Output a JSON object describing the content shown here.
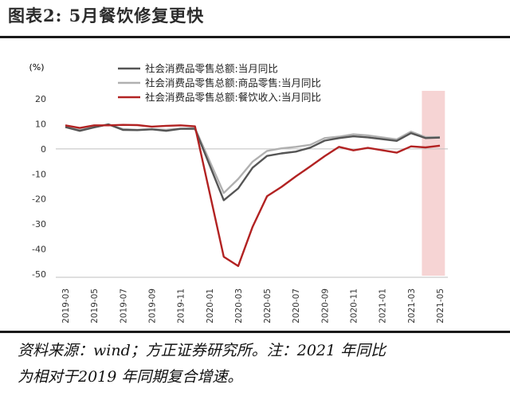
{
  "figure": {
    "title": "图表2:  5月餐饮修复更快",
    "source_line1": "资料来源：wind；方正证券研究所。注：2021 年同比",
    "source_line2": "为相对于2019 年同期复合增速。"
  },
  "colors": {
    "series_total": "#555555",
    "series_goods": "#b0b0b0",
    "series_catering": "#b22222",
    "highlight": "#f6d4d4",
    "axis": "#bfbfbf"
  },
  "chart_data": {
    "type": "line",
    "ylabel": "(%)",
    "ylim": [
      -50,
      20
    ],
    "yticks": [
      20,
      10,
      0,
      -10,
      -20,
      -30,
      -40,
      -50
    ],
    "x": [
      "2019-03",
      "2019-04",
      "2019-05",
      "2019-06",
      "2019-07",
      "2019-08",
      "2019-09",
      "2019-10",
      "2019-11",
      "2019-12",
      "2020-01",
      "2020-02",
      "2020-03",
      "2020-04",
      "2020-05",
      "2020-06",
      "2020-07",
      "2020-08",
      "2020-09",
      "2020-10",
      "2020-11",
      "2020-12",
      "2021-01",
      "2021-02",
      "2021-03",
      "2021-04",
      "2021-05"
    ],
    "xtick_labels": [
      "2019-03",
      "2019-05",
      "2019-07",
      "2019-09",
      "2019-11",
      "2020-01",
      "2020-03",
      "2020-05",
      "2020-07",
      "2020-09",
      "2020-11",
      "2021-01",
      "2021-03",
      "2021-05"
    ],
    "highlight_range": [
      "2021-04",
      "2021-05"
    ],
    "grid": false,
    "legend_position": "top",
    "series": [
      {
        "name": "社会消费品零售总额:当月同比",
        "values": [
          8.7,
          7.2,
          8.6,
          9.8,
          7.6,
          7.5,
          7.8,
          7.2,
          8.0,
          8.0,
          null,
          -20.5,
          -15.8,
          -7.5,
          -2.8,
          -1.8,
          -1.1,
          0.5,
          3.3,
          4.3,
          5.0,
          4.6,
          null,
          3.2,
          6.3,
          4.3,
          4.5
        ]
      },
      {
        "name": "社会消费品零售总额:商品零售:当月同比",
        "values": [
          8.9,
          7.8,
          8.7,
          9.8,
          7.9,
          7.6,
          7.9,
          7.6,
          8.1,
          8.3,
          null,
          -17.6,
          -12.0,
          -5.1,
          -0.8,
          0.2,
          0.8,
          1.6,
          4.3,
          4.9,
          5.8,
          5.4,
          null,
          3.8,
          6.9,
          4.7,
          4.7
        ]
      },
      {
        "name": "社会消费品零售总额:餐饮收入:当月同比",
        "values": [
          9.4,
          8.4,
          9.4,
          9.4,
          9.6,
          9.5,
          8.9,
          9.2,
          9.4,
          9.0,
          null,
          -43.1,
          -46.8,
          -31.1,
          -18.9,
          -15.2,
          -11.0,
          -7.0,
          -2.9,
          0.8,
          -0.6,
          0.4,
          null,
          -1.5,
          1.0,
          0.6,
          1.3
        ]
      }
    ]
  }
}
